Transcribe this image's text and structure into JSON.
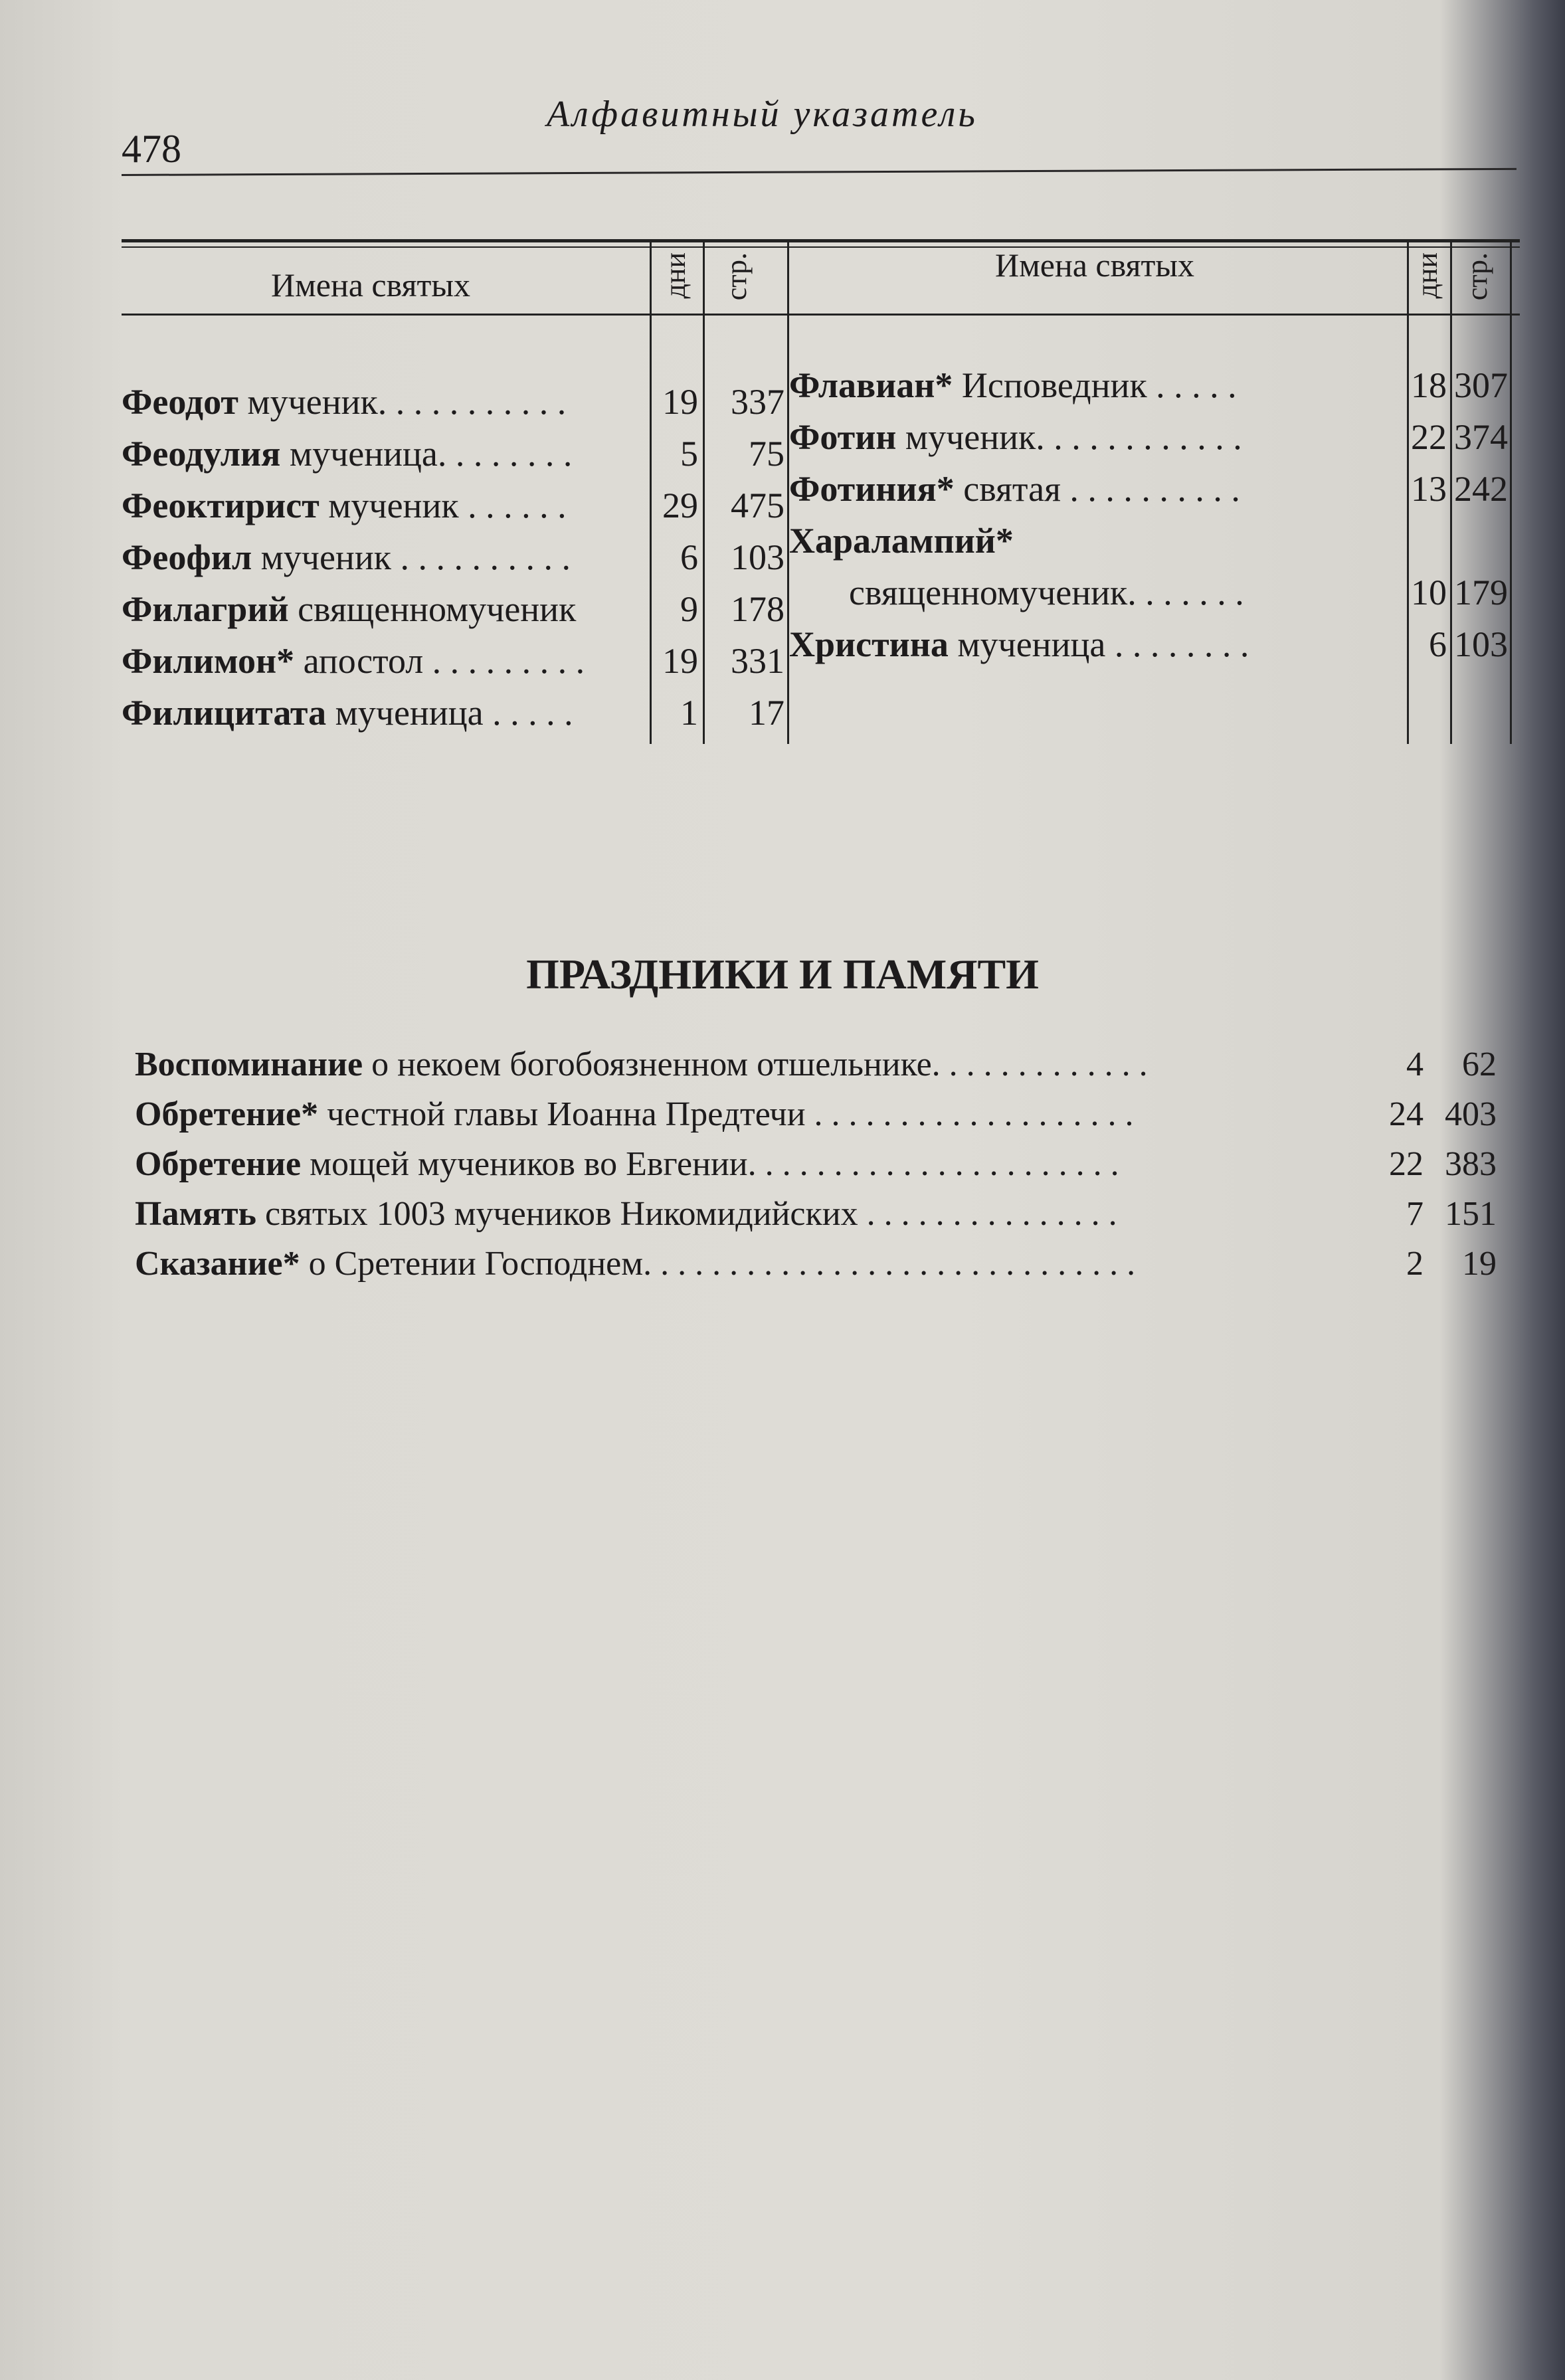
{
  "header": {
    "page_number": "478",
    "running_title": "Алфавитный указатель"
  },
  "columns": {
    "names": "Имена святых",
    "days": "дни",
    "page": "стр."
  },
  "left_entries": [
    {
      "bold": "Феодот",
      "rest": " мученик. . . . . . . . . . .",
      "days": "19",
      "page": "337"
    },
    {
      "bold": "Феодулия",
      "rest": " мученица. . . . . . . .",
      "days": "5",
      "page": "75"
    },
    {
      "bold": "Феоктирист",
      "rest": " мученик . . . . . .",
      "days": "29",
      "page": "475"
    },
    {
      "bold": "Феофил",
      "rest": " мученик . . . . . . . . . .",
      "days": "6",
      "page": "103"
    },
    {
      "bold": "Филагрий",
      "rest": " священномученик",
      "days": "9",
      "page": "178"
    },
    {
      "bold": "Филимон*",
      "rest": " апостол . . . . . . . . .",
      "days": "19",
      "page": "331"
    },
    {
      "bold": "Филицитата",
      "rest": " мученица . . . . .",
      "days": "1",
      "page": "17"
    }
  ],
  "right_entries": [
    {
      "bold": "Флавиан*",
      "rest": " Исповедник . . . . .",
      "days": "18",
      "page": "307"
    },
    {
      "bold": "Фотин",
      "rest": " мученик. . . . . . . . . . . .",
      "days": "22",
      "page": "374"
    },
    {
      "bold": "Фотиния*",
      "rest": " святая  . . . . . . . . . .",
      "days": "13",
      "page": "242"
    },
    {
      "bold": "Харалампий*",
      "rest": "",
      "days": "",
      "page": ""
    },
    {
      "bold": "",
      "rest": "священномученик. . . . . . .",
      "days": "10",
      "page": "179"
    },
    {
      "bold": "Христина",
      "rest": " мученица . . . . . . . .",
      "days": "6",
      "page": "103"
    }
  ],
  "feasts": {
    "title": "ПРАЗДНИКИ И ПАМЯТИ",
    "entries": [
      {
        "bold": "Воспоминание",
        "rest": " о некоем богобоязненном отшельнике. . . . . . . . . . . . .",
        "days": "4",
        "page": "62"
      },
      {
        "bold": "Обретение*",
        "rest": " честной главы Иоанна Предтечи  . . . . . . . . . . . . . . . . . . .",
        "days": "24",
        "page": "403"
      },
      {
        "bold": "Обретение",
        "rest": " мощей мучеников во Евгении. . . . . . . . . . . . . . . . . . . . . .",
        "days": "22",
        "page": "383"
      },
      {
        "bold": "Память",
        "rest": " святых 1003 мучеников Никомидийских  . . . . . . . . . . . . . . .",
        "days": "7",
        "page": "151"
      },
      {
        "bold": "Сказание*",
        "rest": " о Сретении Господнем. . . . . . . . . . . . . . . . . . . . . . . . . . . . .",
        "days": "2",
        "page": "19"
      }
    ]
  }
}
